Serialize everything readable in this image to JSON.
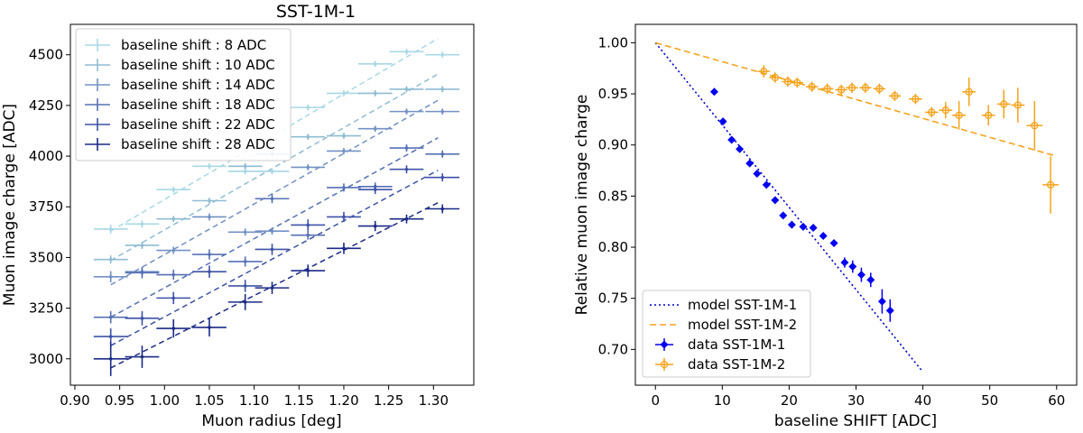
{
  "chart_data": [
    {
      "type": "scatter",
      "title": "SST-1M-1",
      "xlabel": "Muon radius [deg]",
      "ylabel": "Muon image charge [ADC]",
      "xlim": [
        0.895,
        1.345
      ],
      "ylim": [
        2870,
        4650
      ],
      "xticks": [
        0.9,
        0.95,
        1.0,
        1.05,
        1.1,
        1.15,
        1.2,
        1.25,
        1.3
      ],
      "xtick_labels": [
        "0.90",
        "0.95",
        "1.00",
        "1.05",
        "1.10",
        "1.15",
        "1.20",
        "1.25",
        "1.30"
      ],
      "yticks": [
        3000,
        3250,
        3500,
        3750,
        4000,
        4250,
        4500
      ],
      "ytick_labels": [
        "3000",
        "3250",
        "3500",
        "3750",
        "4000",
        "4250",
        "4500"
      ],
      "grid": false,
      "legend_position": "top-left",
      "x_halfwidth": 0.019,
      "series": [
        {
          "name": "baseline shift : 8 ADC",
          "color": "#a8d8e4",
          "x": [
            0.94,
            0.975,
            1.01,
            1.05,
            1.09,
            1.12,
            1.16,
            1.2,
            1.235,
            1.27,
            1.31
          ],
          "y": [
            3640,
            3665,
            3835,
            3950,
            3925,
            3925,
            4240,
            4310,
            4455,
            4515,
            4500
          ],
          "yerr": [
            22,
            18,
            15,
            15,
            15,
            15,
            15,
            15,
            15,
            15,
            15
          ],
          "fit": [
            [
              0.94,
              3630
            ],
            [
              1.305,
              4580
            ]
          ]
        },
        {
          "name": "baseline shift : 10 ADC",
          "color": "#8fbcd3",
          "x": [
            0.94,
            0.975,
            1.01,
            1.05,
            1.09,
            1.12,
            1.16,
            1.2,
            1.235,
            1.27,
            1.31
          ],
          "y": [
            3490,
            3560,
            3690,
            3780,
            3950,
            4010,
            4095,
            4100,
            4310,
            4330,
            4330
          ],
          "yerr": [
            20,
            18,
            15,
            15,
            15,
            15,
            15,
            15,
            15,
            15,
            15
          ],
          "fit": [
            [
              0.94,
              3485
            ],
            [
              1.305,
              4405
            ]
          ]
        },
        {
          "name": "baseline shift : 14 ADC",
          "color": "#7391c4",
          "x": [
            0.94,
            0.975,
            1.01,
            1.05,
            1.09,
            1.12,
            1.16,
            1.2,
            1.235,
            1.27,
            1.31
          ],
          "y": [
            3405,
            3430,
            3535,
            3700,
            3625,
            3630,
            3945,
            4025,
            4135,
            4220,
            4220
          ],
          "yerr": [
            28,
            22,
            18,
            18,
            18,
            18,
            15,
            15,
            15,
            15,
            15
          ],
          "fit": [
            [
              0.94,
              3365
            ],
            [
              1.305,
              4275
            ]
          ]
        },
        {
          "name": "baseline shift : 18 ADC",
          "color": "#5670b4",
          "x": [
            0.94,
            0.975,
            1.01,
            1.05,
            1.09,
            1.12,
            1.16,
            1.2,
            1.235,
            1.27,
            1.31
          ],
          "y": [
            3205,
            3425,
            3415,
            3515,
            3480,
            3790,
            3610,
            3845,
            3850,
            4040,
            4010
          ],
          "yerr": [
            30,
            28,
            25,
            25,
            25,
            22,
            22,
            20,
            20,
            18,
            18
          ],
          "fit": [
            [
              0.94,
              3205
            ],
            [
              1.305,
              4090
            ]
          ]
        },
        {
          "name": "baseline shift : 22 ADC",
          "color": "#3e52a6",
          "x": [
            0.94,
            0.975,
            1.01,
            1.05,
            1.09,
            1.12,
            1.16,
            1.2,
            1.235,
            1.27,
            1.31
          ],
          "y": [
            3110,
            3200,
            3300,
            3430,
            3360,
            3540,
            3660,
            3700,
            3835,
            3935,
            3895
          ],
          "yerr": [
            40,
            35,
            30,
            30,
            30,
            28,
            28,
            25,
            22,
            20,
            20
          ],
          "fit": [
            [
              0.94,
              3065
            ],
            [
              1.305,
              3930
            ]
          ]
        },
        {
          "name": "baseline shift : 28 ADC",
          "color": "#1b2a86",
          "x": [
            0.94,
            0.975,
            1.01,
            1.05,
            1.09,
            1.12,
            1.16,
            1.2,
            1.235,
            1.27,
            1.31
          ],
          "y": [
            3000,
            3010,
            3150,
            3155,
            3280,
            3350,
            3435,
            3545,
            3655,
            3690,
            3740
          ],
          "yerr": [
            85,
            55,
            45,
            45,
            40,
            30,
            30,
            28,
            25,
            22,
            22
          ],
          "fit": [
            [
              0.94,
              2955
            ],
            [
              1.305,
              3770
            ]
          ]
        }
      ]
    },
    {
      "type": "scatter",
      "title": "",
      "xlabel": "baseline SHIFT [ADC]",
      "ylabel": "Relative muon image charge",
      "xlim": [
        -3,
        63
      ],
      "ylim": [
        0.665,
        1.018
      ],
      "xticks": [
        0,
        10,
        20,
        30,
        40,
        50,
        60
      ],
      "xtick_labels": [
        "0",
        "10",
        "20",
        "30",
        "40",
        "50",
        "60"
      ],
      "yticks": [
        0.7,
        0.75,
        0.8,
        0.85,
        0.9,
        0.95,
        1.0
      ],
      "ytick_labels": [
        "0.70",
        "0.75",
        "0.80",
        "0.85",
        "0.90",
        "0.95",
        "1.00"
      ],
      "grid": false,
      "legend_position": "bottom-left",
      "models": [
        {
          "name": "model SST-1M-1",
          "color": "#0000cc",
          "style": "dotted",
          "points": [
            [
              0,
              1.0
            ],
            [
              40,
              0.678
            ]
          ]
        },
        {
          "name": "model SST-1M-2",
          "color": "#f5a21a",
          "style": "dashed",
          "points": [
            [
              0,
              1.0
            ],
            [
              60,
              0.889
            ]
          ]
        }
      ],
      "series": [
        {
          "name": "data SST-1M-1",
          "color": "#0000ee",
          "marker": "filled-diamond",
          "x": [
            8.8,
            10.1,
            11.4,
            12.6,
            14.1,
            15.2,
            16.6,
            17.9,
            19.1,
            20.4,
            22.1,
            23.6,
            25.1,
            26.7,
            28.3,
            29.5,
            30.8,
            32.2,
            33.9,
            35.1
          ],
          "y": [
            0.952,
            0.923,
            0.905,
            0.896,
            0.882,
            0.872,
            0.861,
            0.846,
            0.831,
            0.822,
            0.82,
            0.819,
            0.811,
            0.804,
            0.785,
            0.781,
            0.773,
            0.768,
            0.747,
            0.738
          ],
          "xerr": [
            0.3,
            0.3,
            0.3,
            0.3,
            0.3,
            0.3,
            0.3,
            0.3,
            0.3,
            0.3,
            0.3,
            0.3,
            0.3,
            0.3,
            0.3,
            0.3,
            0.3,
            0.3,
            0.3,
            0.3
          ],
          "yerr": [
            0.002,
            0.002,
            0.002,
            0.002,
            0.002,
            0.002,
            0.002,
            0.002,
            0.002,
            0.002,
            0.002,
            0.002,
            0.002,
            0.002,
            0.005,
            0.006,
            0.007,
            0.007,
            0.012,
            0.011
          ]
        },
        {
          "name": "data SST-1M-2",
          "color": "#f5a21a",
          "marker": "open-circle",
          "x": [
            16.2,
            17.9,
            19.8,
            21.2,
            23.4,
            25.7,
            27.8,
            29.4,
            31.4,
            33.5,
            35.8,
            38.9,
            41.3,
            43.4,
            45.4,
            46.9,
            49.8,
            52.1,
            54.2,
            56.7,
            59.1
          ],
          "y": [
            0.972,
            0.966,
            0.962,
            0.961,
            0.957,
            0.955,
            0.954,
            0.956,
            0.956,
            0.955,
            0.948,
            0.945,
            0.932,
            0.934,
            0.929,
            0.952,
            0.929,
            0.94,
            0.939,
            0.919,
            0.861
          ],
          "xerr": [
            0.9,
            0.9,
            0.9,
            0.9,
            0.9,
            0.9,
            0.9,
            0.9,
            0.9,
            0.9,
            0.9,
            1.0,
            1.0,
            1.0,
            1.0,
            1.0,
            1.0,
            1.0,
            1.0,
            1.2,
            1.2
          ],
          "yerr": [
            0.006,
            0.005,
            0.005,
            0.005,
            0.005,
            0.005,
            0.005,
            0.005,
            0.005,
            0.005,
            0.005,
            0.005,
            0.005,
            0.008,
            0.014,
            0.014,
            0.01,
            0.014,
            0.017,
            0.024,
            0.028
          ]
        }
      ]
    }
  ]
}
